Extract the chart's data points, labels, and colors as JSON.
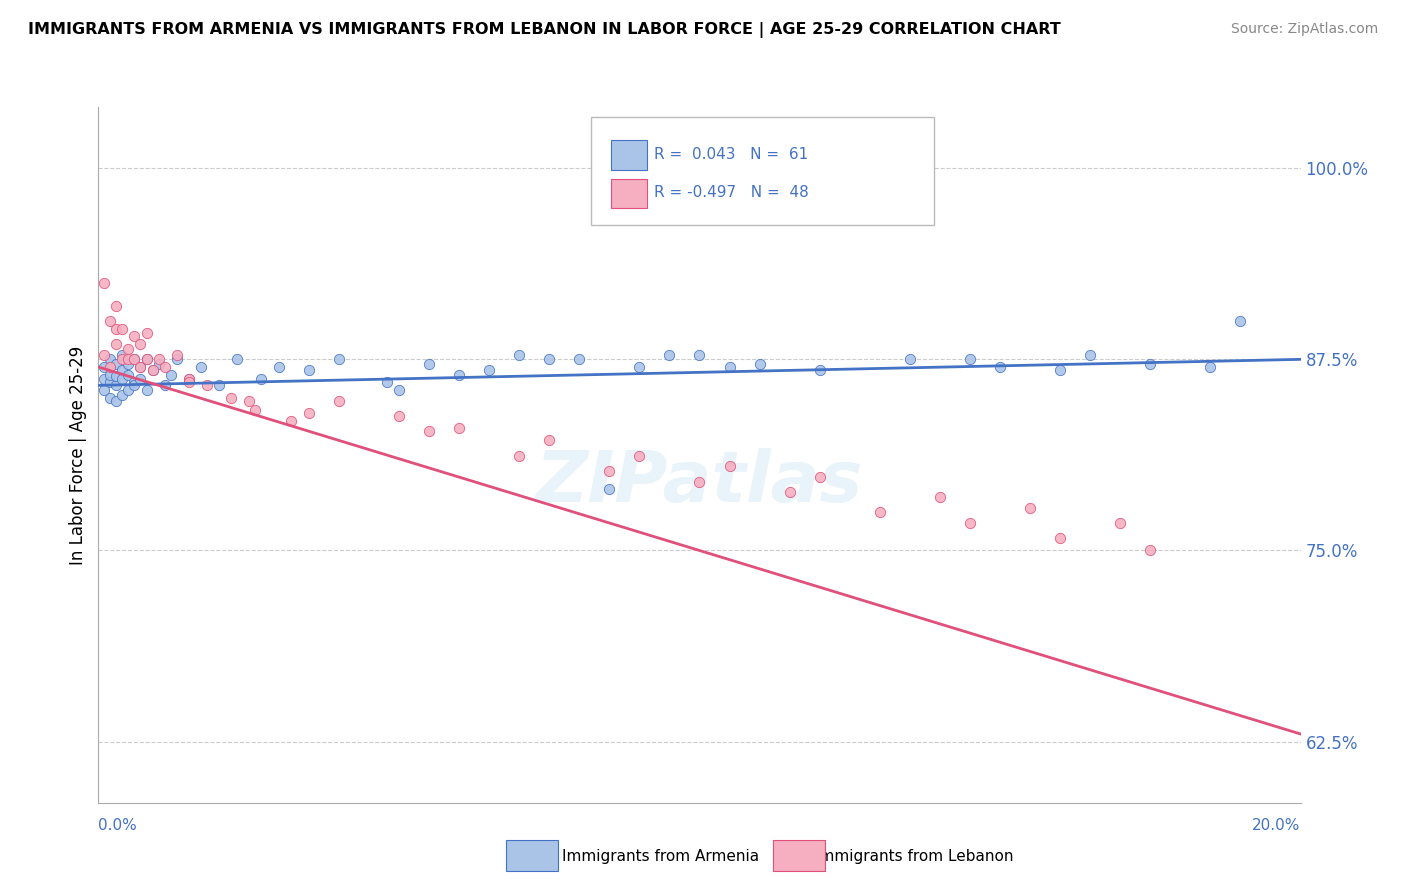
{
  "title": "IMMIGRANTS FROM ARMENIA VS IMMIGRANTS FROM LEBANON IN LABOR FORCE | AGE 25-29 CORRELATION CHART",
  "source": "Source: ZipAtlas.com",
  "ylabel": "In Labor Force | Age 25-29",
  "ylabel_ticks": [
    "62.5%",
    "75.0%",
    "87.5%",
    "100.0%"
  ],
  "ylabel_vals": [
    0.625,
    0.75,
    0.875,
    1.0
  ],
  "xmin": 0.0,
  "xmax": 0.2,
  "ymin": 0.585,
  "ymax": 1.04,
  "legend_r1": "0.043",
  "legend_n1": "61",
  "legend_r2": "-0.497",
  "legend_n2": "48",
  "color_armenia": "#aac4e8",
  "color_lebanon": "#f5afc0",
  "color_line_armenia": "#4472c4",
  "color_line_lebanon": "#e0507a",
  "color_text_blue": "#4472c4",
  "background_color": "#ffffff",
  "grid_color": "#cccccc",
  "armenia_x": [
    0.001,
    0.001,
    0.001,
    0.002,
    0.002,
    0.002,
    0.002,
    0.003,
    0.003,
    0.003,
    0.003,
    0.004,
    0.004,
    0.004,
    0.004,
    0.005,
    0.005,
    0.005,
    0.006,
    0.006,
    0.006,
    0.007,
    0.007,
    0.008,
    0.008,
    0.009,
    0.01,
    0.011,
    0.012,
    0.013,
    0.015,
    0.017,
    0.02,
    0.023,
    0.027,
    0.03,
    0.035,
    0.04,
    0.048,
    0.055,
    0.06,
    0.07,
    0.08,
    0.09,
    0.1,
    0.11,
    0.12,
    0.135,
    0.15,
    0.165,
    0.175,
    0.185,
    0.19,
    0.05,
    0.065,
    0.075,
    0.085,
    0.095,
    0.105,
    0.145,
    0.16
  ],
  "armenia_y": [
    0.862,
    0.855,
    0.87,
    0.86,
    0.875,
    0.85,
    0.865,
    0.858,
    0.872,
    0.848,
    0.864,
    0.868,
    0.852,
    0.878,
    0.862,
    0.855,
    0.872,
    0.865,
    0.86,
    0.875,
    0.858,
    0.87,
    0.862,
    0.875,
    0.855,
    0.868,
    0.872,
    0.858,
    0.865,
    0.875,
    0.862,
    0.87,
    0.858,
    0.875,
    0.862,
    0.87,
    0.868,
    0.875,
    0.86,
    0.872,
    0.865,
    0.878,
    0.875,
    0.87,
    0.878,
    0.872,
    0.868,
    0.875,
    0.87,
    0.878,
    0.872,
    0.87,
    0.9,
    0.855,
    0.868,
    0.875,
    0.79,
    0.878,
    0.87,
    0.875,
    0.868
  ],
  "lebanon_x": [
    0.001,
    0.001,
    0.002,
    0.002,
    0.003,
    0.003,
    0.003,
    0.004,
    0.004,
    0.005,
    0.005,
    0.006,
    0.006,
    0.007,
    0.007,
    0.008,
    0.008,
    0.009,
    0.01,
    0.011,
    0.013,
    0.015,
    0.018,
    0.022,
    0.026,
    0.032,
    0.04,
    0.05,
    0.06,
    0.075,
    0.09,
    0.105,
    0.12,
    0.14,
    0.155,
    0.17,
    0.015,
    0.025,
    0.035,
    0.055,
    0.07,
    0.085,
    0.1,
    0.115,
    0.13,
    0.145,
    0.16,
    0.175
  ],
  "lebanon_y": [
    0.878,
    0.925,
    0.87,
    0.9,
    0.895,
    0.885,
    0.91,
    0.875,
    0.895,
    0.882,
    0.875,
    0.89,
    0.875,
    0.87,
    0.885,
    0.875,
    0.892,
    0.868,
    0.875,
    0.87,
    0.878,
    0.862,
    0.858,
    0.85,
    0.842,
    0.835,
    0.848,
    0.838,
    0.83,
    0.822,
    0.812,
    0.805,
    0.798,
    0.785,
    0.778,
    0.768,
    0.86,
    0.848,
    0.84,
    0.828,
    0.812,
    0.802,
    0.795,
    0.788,
    0.775,
    0.768,
    0.758,
    0.75
  ],
  "armenia_line_x0": 0.0,
  "armenia_line_x1": 0.2,
  "armenia_line_y0": 0.858,
  "armenia_line_y1": 0.875,
  "lebanon_line_x0": 0.0,
  "lebanon_line_x1": 0.2,
  "lebanon_line_y0": 0.87,
  "lebanon_line_y1": 0.63
}
